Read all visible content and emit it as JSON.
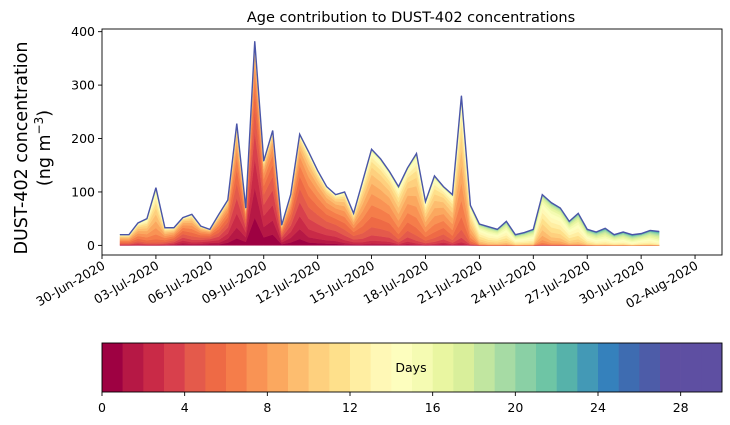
{
  "chart_data": {
    "type": "area",
    "title": "Age contribution to DUST-402 concentrations",
    "ylabel_line1": "DUST-402 concentration",
    "ylabel_line2_prefix": "(ng m",
    "ylabel_line2_sup": "−3",
    "ylabel_line2_suffix": ")",
    "xlabel": "",
    "ylim": [
      -18,
      405
    ],
    "yticks": [
      0,
      100,
      200,
      300,
      400
    ],
    "x_day_range": [
      0,
      34.5
    ],
    "xtick_days": [
      0,
      3,
      6,
      9,
      12,
      15,
      18,
      21,
      24,
      27,
      30,
      33
    ],
    "xtick_labels": [
      "30-Jun-2020",
      "03-Jul-2020",
      "06-Jul-2020",
      "09-Jul-2020",
      "12-Jul-2020",
      "15-Jul-2020",
      "18-Jul-2020",
      "21-Jul-2020",
      "24-Jul-2020",
      "27-Jul-2020",
      "30-Jul-2020",
      "02-Aug-2020"
    ],
    "x_days": [
      1,
      1.5,
      2,
      2.5,
      3,
      3.5,
      4,
      4.5,
      5,
      5.5,
      6,
      6.5,
      7,
      7.5,
      8,
      8.5,
      9,
      9.5,
      10,
      10.5,
      11,
      11.5,
      12,
      12.5,
      13,
      13.5,
      14,
      14.5,
      15,
      15.5,
      16,
      16.5,
      17,
      17.5,
      18,
      18.5,
      19,
      19.5,
      20,
      20.5,
      21,
      21.5,
      22,
      22.5,
      23,
      23.5,
      24,
      24.5,
      25,
      25.5,
      26,
      26.5,
      27,
      27.5,
      28,
      28.5,
      29,
      29.5,
      30,
      30.5,
      31
    ],
    "total": [
      20,
      20,
      42,
      50,
      108,
      33,
      33,
      52,
      58,
      36,
      30,
      58,
      85,
      228,
      70,
      382,
      158,
      215,
      38,
      95,
      208,
      175,
      140,
      110,
      95,
      100,
      60,
      120,
      180,
      162,
      138,
      110,
      145,
      172,
      82,
      130,
      110,
      95,
      280,
      75,
      40,
      35,
      30,
      45,
      20,
      24,
      30,
      95,
      80,
      70,
      45,
      60,
      30,
      25,
      32,
      20,
      25,
      20,
      22,
      28,
      26
    ],
    "age_bins": 30,
    "peak_age": [
      6,
      6,
      6,
      7,
      8,
      6,
      5,
      4,
      5,
      4,
      3,
      4,
      3,
      3,
      2,
      1,
      2,
      2,
      3,
      3,
      3,
      4,
      4,
      4,
      4,
      5,
      5,
      6,
      6,
      6,
      6,
      7,
      6,
      7,
      7,
      7,
      6,
      7,
      7,
      8,
      11,
      12,
      12,
      12,
      13,
      13,
      13,
      10,
      11,
      11,
      12,
      12,
      13,
      14,
      14,
      14,
      14,
      15,
      14,
      14,
      15
    ],
    "colorbar": {
      "label": "Days",
      "range": [
        0,
        30
      ],
      "ticks": [
        0,
        4,
        8,
        12,
        16,
        20,
        24,
        28
      ],
      "tick_labels": [
        "0",
        "4",
        "8",
        "12",
        "16",
        "20",
        "24",
        "28"
      ]
    },
    "colors": [
      "#9e0142",
      "#b61845",
      "#c92a47",
      "#d8404c",
      "#e45a4b",
      "#ee6a45",
      "#f57d4a",
      "#f99354",
      "#fba85f",
      "#fdbd6f",
      "#fed07e",
      "#fee08b",
      "#ffeea2",
      "#fff8b6",
      "#fdfebe",
      "#f5fbb2",
      "#e9f6a1",
      "#d9ef9b",
      "#c1e6a0",
      "#a6dba4",
      "#8ad0a5",
      "#6ec5a5",
      "#56b2aa",
      "#4399b6",
      "#3581bc",
      "#3e6cb1",
      "#4d5ca8",
      "#5e4fa2",
      "#5e4fa2",
      "#5e4fa2"
    ]
  }
}
